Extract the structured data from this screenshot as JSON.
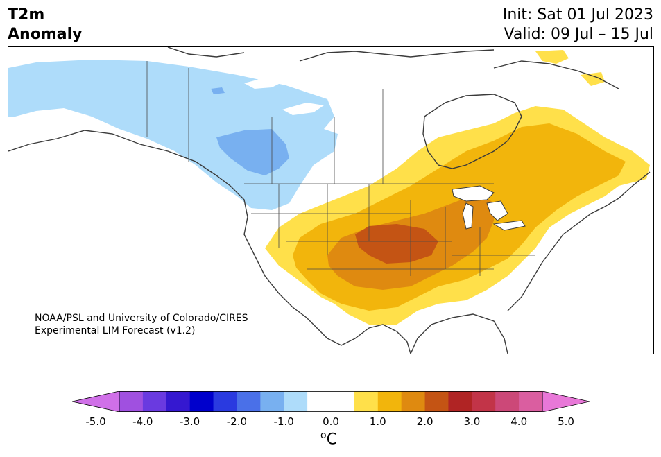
{
  "title": {
    "line1": "T2m",
    "line2": "Anomaly"
  },
  "init": {
    "line1": "Init: Sat 01 Jul 2023",
    "line2": "Valid: 09 Jul – 15 Jul"
  },
  "credit": {
    "line1": "NOAA/PSL and University of Colorado/CIRES",
    "line2": "Experimental LIM Forecast (v1.2)"
  },
  "colorbar": {
    "ticks": [
      "-5.0",
      "-4.0",
      "-3.0",
      "-2.0",
      "-1.0",
      "0.0",
      "1.0",
      "2.0",
      "3.0",
      "4.0",
      "5.0"
    ],
    "unit_base": "C",
    "unit_sup": "o",
    "colors": [
      "#d070e8",
      "#a050e0",
      "#6a3ae0",
      "#3518d0",
      "#0000cc",
      "#2a3ae0",
      "#4a70e8",
      "#78b0f0",
      "#aedcfa",
      "#ffffff",
      "#ffffff",
      "#ffe04a",
      "#f2b50c",
      "#df8a10",
      "#c45414",
      "#b02424",
      "#c23448",
      "#cc4878",
      "#da5ea0",
      "#e878d8"
    ]
  },
  "map": {
    "regions": {
      "cold_light": "#aedcfa",
      "cold_mid": "#78b0f0",
      "cold_deep": "#4a90e8",
      "warm_1": "#ffe04a",
      "warm_2": "#f2b50c",
      "warm_3": "#df8a10",
      "warm_4": "#c45414"
    }
  }
}
